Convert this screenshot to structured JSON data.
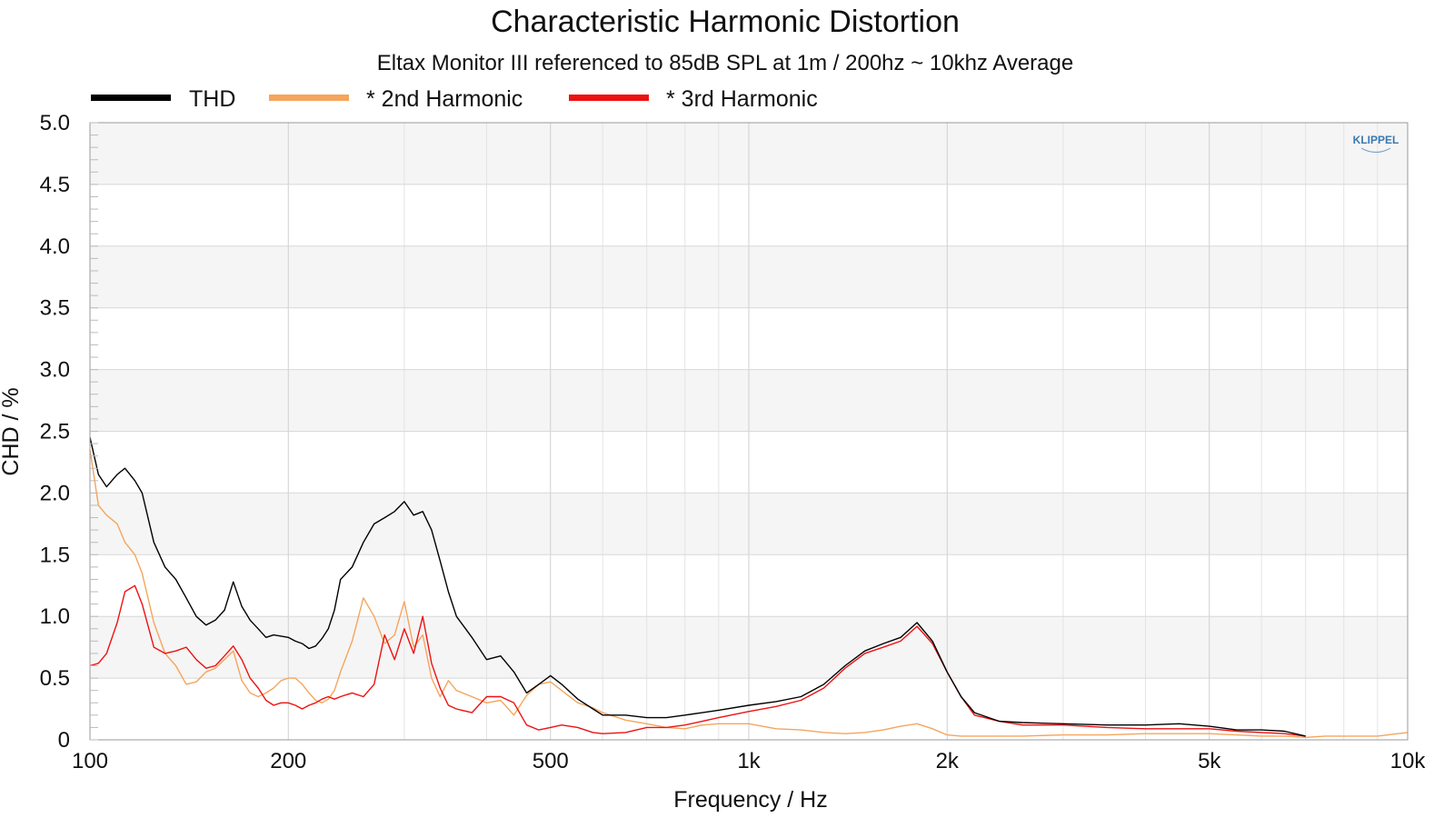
{
  "chart_data": {
    "type": "line",
    "title": "Characteristic Harmonic Distortion",
    "subtitle": "Eltax Monitor III referenced to 85dB SPL at 1m / 200hz ~ 10khz Average",
    "xlabel": "Frequency / Hz",
    "ylabel": "CHD / %",
    "xscale": "log",
    "xlim": [
      100,
      10000
    ],
    "ylim": [
      0,
      5
    ],
    "xticks": [
      100,
      200,
      500,
      1000,
      2000,
      5000,
      10000
    ],
    "xtick_labels": [
      "100",
      "200",
      "500",
      "1k",
      "2k",
      "5k",
      "10k"
    ],
    "yticks": [
      0,
      0.5,
      1,
      1.5,
      2,
      2.5,
      3,
      3.5,
      4,
      4.5,
      5
    ],
    "ytick_labels": [
      "0",
      "0.5",
      "1.0",
      "1.5",
      "2.0",
      "2.5",
      "3.0",
      "3.5",
      "4.0",
      "4.5",
      "5.0"
    ],
    "grid": true,
    "legend_position": "top-left",
    "watermark": "KLIPPEL",
    "series": [
      {
        "name": "THD",
        "color": "#000000",
        "x": [
          100,
          103,
          106,
          110,
          113,
          117,
          120,
          125,
          130,
          135,
          140,
          145,
          150,
          155,
          160,
          165,
          170,
          175,
          180,
          185,
          190,
          195,
          200,
          205,
          210,
          215,
          220,
          225,
          230,
          235,
          240,
          250,
          260,
          270,
          280,
          290,
          300,
          310,
          320,
          330,
          340,
          350,
          360,
          380,
          400,
          420,
          440,
          460,
          480,
          500,
          520,
          550,
          580,
          600,
          650,
          700,
          750,
          800,
          850,
          900,
          1000,
          1100,
          1200,
          1300,
          1400,
          1500,
          1600,
          1700,
          1800,
          1900,
          2000,
          2100,
          2200,
          2400,
          2600,
          3000,
          3500,
          4000,
          4500,
          5000,
          5500,
          6000,
          6500,
          7000,
          7500,
          8000,
          9000,
          10000
        ],
        "y": [
          2.45,
          2.15,
          2.05,
          2.15,
          2.2,
          2.1,
          2.0,
          1.6,
          1.4,
          1.3,
          1.15,
          1.0,
          0.93,
          0.97,
          1.05,
          1.28,
          1.08,
          0.97,
          0.9,
          0.83,
          0.85,
          0.84,
          0.83,
          0.8,
          0.78,
          0.74,
          0.76,
          0.82,
          0.9,
          1.05,
          1.3,
          1.4,
          1.6,
          1.75,
          1.8,
          1.85,
          1.93,
          1.82,
          1.85,
          1.7,
          1.45,
          1.2,
          1.0,
          0.83,
          0.65,
          0.68,
          0.55,
          0.38,
          0.45,
          0.52,
          0.45,
          0.33,
          0.25,
          0.2,
          0.2,
          0.18,
          0.18,
          0.2,
          0.22,
          0.24,
          0.28,
          0.31,
          0.35,
          0.45,
          0.6,
          0.72,
          0.78,
          0.83,
          0.95,
          0.8,
          0.55,
          0.35,
          0.22,
          0.15,
          0.14,
          0.13,
          0.12,
          0.12,
          0.13,
          0.11,
          0.08,
          0.08,
          0.07,
          0.03,
          null,
          null,
          null,
          null
        ]
      },
      {
        "name": "* 2nd Harmonic",
        "color": "#f5a55c",
        "x": [
          100,
          103,
          106,
          110,
          113,
          117,
          120,
          125,
          130,
          135,
          140,
          145,
          150,
          155,
          160,
          165,
          170,
          175,
          180,
          185,
          190,
          195,
          200,
          205,
          210,
          215,
          220,
          225,
          230,
          235,
          240,
          250,
          260,
          270,
          280,
          290,
          300,
          310,
          320,
          330,
          340,
          350,
          360,
          380,
          400,
          420,
          440,
          460,
          480,
          500,
          520,
          550,
          580,
          600,
          650,
          700,
          750,
          800,
          850,
          900,
          1000,
          1100,
          1200,
          1300,
          1400,
          1500,
          1600,
          1700,
          1800,
          1900,
          2000,
          2100,
          2200,
          2400,
          2600,
          3000,
          3500,
          4000,
          4500,
          5000,
          5500,
          6000,
          6500,
          7000,
          7500,
          8000,
          9000,
          10000
        ],
        "y": [
          2.35,
          1.9,
          1.82,
          1.75,
          1.6,
          1.5,
          1.35,
          0.95,
          0.7,
          0.6,
          0.45,
          0.47,
          0.55,
          0.58,
          0.65,
          0.72,
          0.48,
          0.38,
          0.35,
          0.38,
          0.42,
          0.48,
          0.5,
          0.5,
          0.45,
          0.38,
          0.32,
          0.3,
          0.33,
          0.4,
          0.55,
          0.8,
          1.15,
          1.0,
          0.78,
          0.85,
          1.12,
          0.75,
          0.85,
          0.5,
          0.35,
          0.48,
          0.4,
          0.35,
          0.3,
          0.32,
          0.2,
          0.36,
          0.45,
          0.47,
          0.4,
          0.3,
          0.26,
          0.22,
          0.16,
          0.13,
          0.1,
          0.09,
          0.12,
          0.13,
          0.13,
          0.09,
          0.08,
          0.06,
          0.05,
          0.06,
          0.08,
          0.11,
          0.13,
          0.09,
          0.04,
          0.03,
          0.03,
          0.03,
          0.03,
          0.04,
          0.04,
          0.05,
          0.05,
          0.05,
          0.04,
          0.03,
          0.03,
          0.02,
          0.03,
          0.03,
          0.03,
          0.06
        ]
      },
      {
        "name": "* 3rd Harmonic",
        "color": "#ee1111",
        "x": [
          100,
          103,
          106,
          110,
          113,
          117,
          120,
          125,
          130,
          135,
          140,
          145,
          150,
          155,
          160,
          165,
          170,
          175,
          180,
          185,
          190,
          195,
          200,
          205,
          210,
          215,
          220,
          225,
          230,
          235,
          240,
          250,
          260,
          270,
          280,
          290,
          300,
          310,
          320,
          330,
          340,
          350,
          360,
          380,
          400,
          420,
          440,
          460,
          480,
          500,
          520,
          550,
          580,
          600,
          650,
          700,
          750,
          800,
          850,
          900,
          1000,
          1100,
          1200,
          1300,
          1400,
          1500,
          1600,
          1700,
          1800,
          1900,
          2000,
          2100,
          2200,
          2400,
          2600,
          3000,
          3500,
          4000,
          4500,
          5000,
          5500,
          6000,
          6500,
          7000,
          7500,
          8000,
          9000,
          10000
        ],
        "y": [
          0.6,
          0.62,
          0.7,
          0.95,
          1.2,
          1.25,
          1.1,
          0.75,
          0.7,
          0.72,
          0.75,
          0.65,
          0.58,
          0.6,
          0.68,
          0.76,
          0.65,
          0.5,
          0.42,
          0.32,
          0.28,
          0.3,
          0.3,
          0.28,
          0.25,
          0.28,
          0.3,
          0.33,
          0.35,
          0.33,
          0.35,
          0.38,
          0.35,
          0.45,
          0.85,
          0.65,
          0.9,
          0.7,
          1.0,
          0.62,
          0.42,
          0.28,
          0.25,
          0.22,
          0.35,
          0.35,
          0.3,
          0.12,
          0.08,
          0.1,
          0.12,
          0.1,
          0.06,
          0.05,
          0.06,
          0.1,
          0.1,
          0.12,
          0.15,
          0.18,
          0.23,
          0.27,
          0.32,
          0.42,
          0.58,
          0.7,
          0.75,
          0.8,
          0.92,
          0.78,
          0.55,
          0.35,
          0.2,
          0.15,
          0.12,
          0.12,
          0.1,
          0.09,
          0.09,
          0.09,
          0.07,
          0.06,
          0.05,
          0.03,
          null,
          null,
          null,
          null
        ]
      }
    ]
  }
}
